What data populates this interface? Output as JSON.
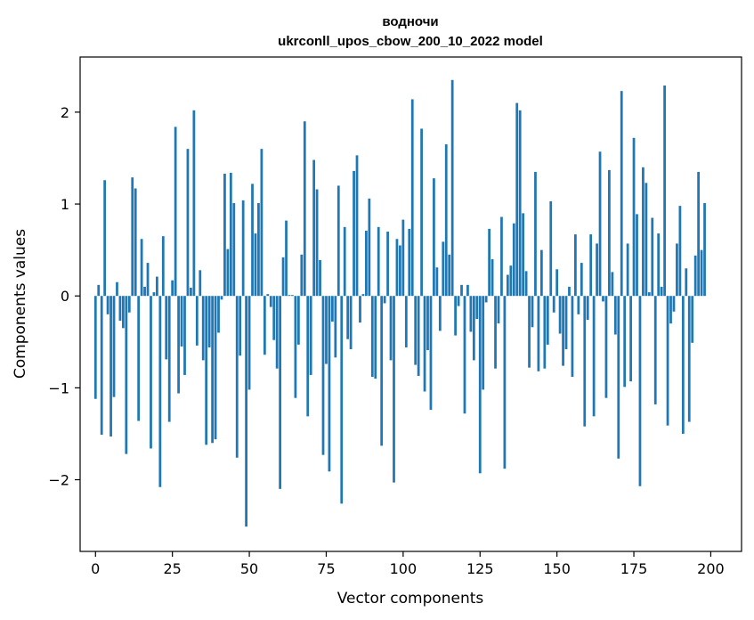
{
  "chart_data": {
    "type": "bar",
    "title_lines": [
      "водночи",
      "ukrconll_upos_cbow_200_10_2022 model"
    ],
    "xlabel": "Vector components",
    "ylabel": "Components values",
    "xlim": [
      -5,
      210
    ],
    "ylim": [
      -2.78,
      2.6
    ],
    "xticks": [
      0,
      25,
      50,
      75,
      100,
      125,
      150,
      175,
      200
    ],
    "yticks": [
      -2,
      -1,
      0,
      1,
      2
    ],
    "ytick_labels": [
      "−2",
      "−1",
      "0",
      "1",
      "2"
    ],
    "grid": false,
    "bar_color": "#1f77b4",
    "values": [
      -1.12,
      0.12,
      -1.51,
      1.26,
      -0.2,
      -1.53,
      -1.1,
      0.15,
      -0.27,
      -0.35,
      -1.72,
      -0.18,
      1.29,
      1.17,
      -1.36,
      0.62,
      0.1,
      0.36,
      -1.66,
      0.04,
      0.21,
      -2.08,
      0.65,
      -0.69,
      -1.37,
      0.17,
      1.84,
      -1.06,
      -0.55,
      -0.86,
      1.6,
      0.09,
      2.02,
      -0.54,
      0.28,
      -0.7,
      -1.62,
      -0.56,
      -1.6,
      -1.56,
      -0.4,
      -0.04,
      1.33,
      0.51,
      1.34,
      1.01,
      -1.76,
      -0.65,
      1.04,
      -2.51,
      -1.02,
      1.22,
      0.68,
      1.01,
      1.6,
      -0.64,
      0.02,
      -0.12,
      -0.48,
      -0.79,
      -2.1,
      0.42,
      0.82,
      0.01,
      0.01,
      -1.11,
      -0.53,
      0.45,
      1.9,
      -1.31,
      -0.86,
      1.48,
      1.16,
      0.39,
      -1.73,
      -0.74,
      -1.91,
      -0.28,
      -0.67,
      1.2,
      -2.26,
      0.75,
      -0.47,
      -0.58,
      1.36,
      1.53,
      -0.29,
      0.02,
      0.71,
      1.06,
      -0.88,
      -0.9,
      0.75,
      -1.63,
      -0.08,
      0.7,
      -0.7,
      -2.03,
      0.62,
      0.55,
      0.83,
      -0.56,
      0.73,
      2.14,
      -0.75,
      -0.87,
      1.82,
      -1.04,
      -0.59,
      -1.24,
      1.28,
      0.31,
      -0.38,
      0.59,
      1.65,
      0.45,
      2.35,
      -0.43,
      -0.11,
      0.12,
      -1.28,
      0.12,
      -0.39,
      -0.7,
      -0.25,
      -1.93,
      -1.02,
      -0.07,
      0.73,
      0.4,
      -0.79,
      -0.3,
      0.86,
      -1.88,
      0.23,
      0.33,
      0.79,
      2.1,
      2.02,
      0.9,
      0.27,
      -0.78,
      -0.34,
      1.35,
      -0.82,
      0.5,
      -0.79,
      -0.53,
      1.03,
      -0.18,
      0.29,
      -0.41,
      -0.76,
      -0.58,
      0.1,
      -0.88,
      0.67,
      -0.2,
      0.36,
      -1.42,
      -0.26,
      0.67,
      -1.31,
      0.57,
      1.57,
      -0.06,
      -1.11,
      1.37,
      0.26,
      -0.42,
      -1.77,
      2.23,
      -0.99,
      0.57,
      -0.93,
      1.72,
      0.89,
      -2.07,
      1.4,
      1.23,
      0.04,
      0.85,
      -1.18,
      0.68,
      0.1,
      2.29,
      -1.41,
      -0.3,
      -0.17,
      0.57,
      0.98,
      -1.5,
      0.3,
      -1.37,
      -0.51,
      0.44,
      1.35,
      0.5,
      1.01,
      0.0
    ]
  }
}
